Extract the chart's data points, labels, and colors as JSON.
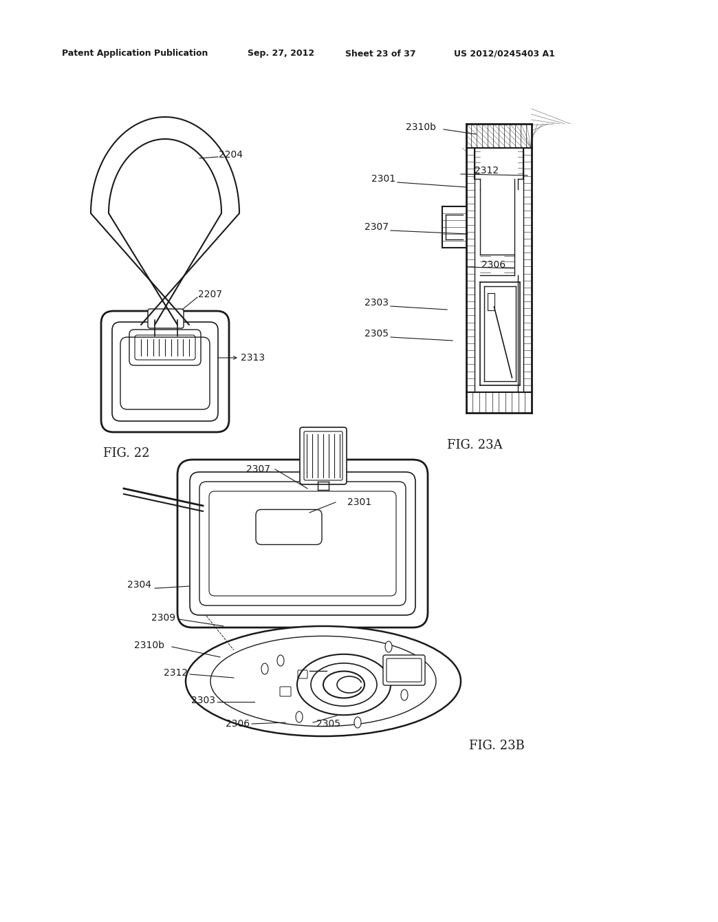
{
  "background_color": "#ffffff",
  "header_text": "Patent Application Publication",
  "header_date": "Sep. 27, 2012",
  "header_sheet": "Sheet 23 of 37",
  "header_patent": "US 2012/0245403 A1",
  "fig22_label": "FIG. 22",
  "fig23a_label": "FIG. 23A",
  "fig23b_label": "FIG. 23B",
  "line_color": "#1a1a1a",
  "text_color": "#1a1a1a",
  "hatch_color": "#555555"
}
